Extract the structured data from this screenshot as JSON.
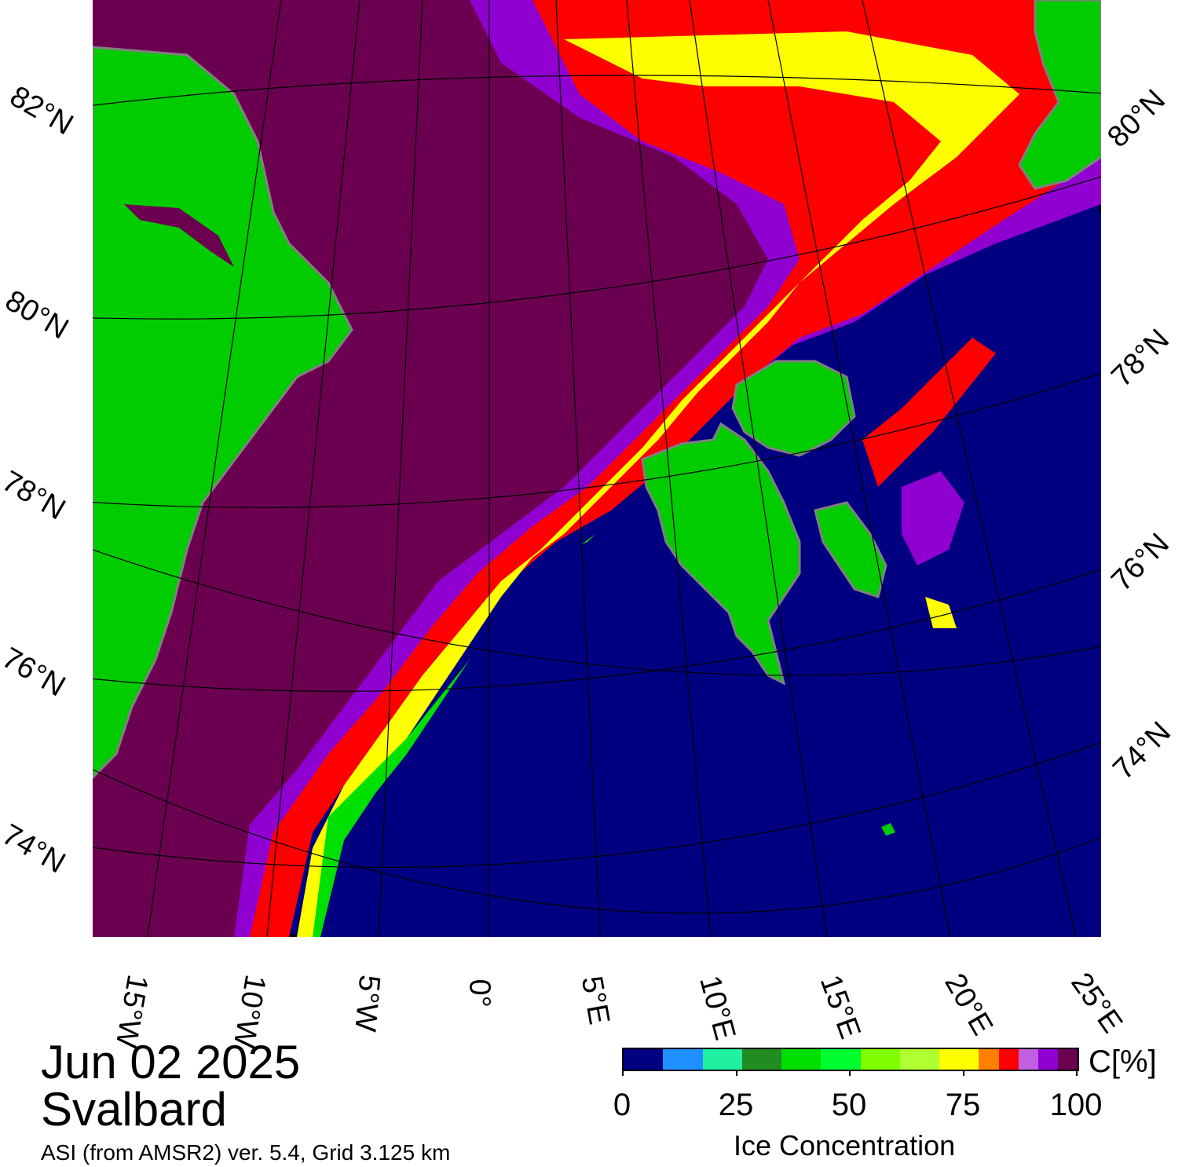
{
  "title": {
    "date": "Jun 02 2025",
    "region": "Svalbard",
    "product": "ASI (from AMSR2) ver. 5.4,  Grid 3.125 km"
  },
  "map": {
    "left_lat_labels": [
      "82°N",
      "80°N",
      "78°N",
      "76°N",
      "74°N"
    ],
    "right_lat_labels": [
      "80°N",
      "78°N",
      "76°N",
      "74°N"
    ],
    "lon_labels": [
      "15°W",
      "10°W",
      "5°W",
      "0°",
      "5°E",
      "10°E",
      "15°E",
      "20°E",
      "25°E"
    ],
    "colors": {
      "ocean": "#000080",
      "land": "#00cc00",
      "land_outline": "#808080",
      "high_ice": "#6b0050"
    }
  },
  "colorbar": {
    "unit": "C[%]",
    "title": "Ice Concentration",
    "tick_labels": [
      "0",
      "25",
      "50",
      "75",
      "100"
    ],
    "colors": [
      "#000080",
      "#1e90ff",
      "#20f0a0",
      "#228b22",
      "#00e000",
      "#00ff30",
      "#80ff00",
      "#b0ff30",
      "#ffff00",
      "#ff8000",
      "#ff0000",
      "#c060e0",
      "#9000d0",
      "#6b0050"
    ]
  }
}
